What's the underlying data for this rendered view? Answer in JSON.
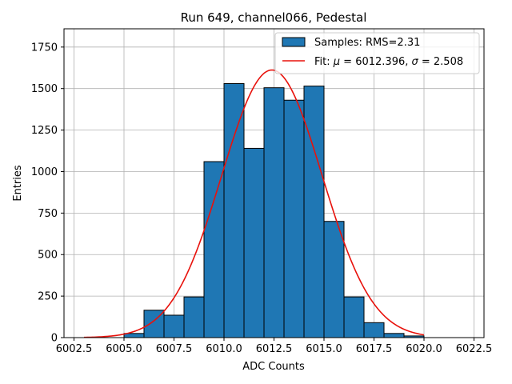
{
  "chart_data": {
    "type": "bar",
    "title": "Run 649, channel066, Pedestal",
    "xlabel": "ADC Counts",
    "ylabel": "Entries",
    "xlim": [
      6002.0,
      6023.0
    ],
    "ylim": [
      0,
      1860
    ],
    "grid": true,
    "legend_position": "top-right",
    "xticks": [
      6002.5,
      6005.0,
      6007.5,
      6010.0,
      6012.5,
      6015.0,
      6017.5,
      6020.0,
      6022.5
    ],
    "xtick_labels": [
      "6002.5",
      "6005.0",
      "6007.5",
      "6010.0",
      "6012.5",
      "6015.0",
      "6017.5",
      "6020.0",
      "6022.5"
    ],
    "yticks": [
      0,
      250,
      500,
      750,
      1000,
      1250,
      1500,
      1750
    ],
    "ytick_labels": [
      "0",
      "250",
      "500",
      "750",
      "1000",
      "1250",
      "1500",
      "1750"
    ],
    "bin_edges": [
      6005,
      6006,
      6007,
      6008,
      6009,
      6010,
      6011,
      6012,
      6013,
      6014,
      6015,
      6016,
      6017,
      6018,
      6019,
      6020
    ],
    "series": [
      {
        "name": "Samples: RMS=2.31",
        "kind": "histogram",
        "color": "#1f77b4",
        "edgecolor": "#000000",
        "values": [
          25,
          165,
          135,
          245,
          1060,
          1530,
          1140,
          1505,
          1430,
          1515,
          700,
          245,
          90,
          25,
          10
        ]
      },
      {
        "name": "Fit: μ = 6012.396, σ = 2.508",
        "kind": "line",
        "color": "#e8120c",
        "mu": 6012.396,
        "sigma": 2.508,
        "amplitude": 1612,
        "x_range": [
          6003.0,
          6020.0
        ]
      }
    ],
    "legend": {
      "hist_label_prefix": "Samples: RMS=2.31",
      "fit_label_prefix": "Fit: ",
      "fit_mu_symbol": "μ",
      "fit_mu_text": " = 6012.396, ",
      "fit_sigma_symbol": "σ",
      "fit_sigma_text": " = 2.508"
    }
  }
}
